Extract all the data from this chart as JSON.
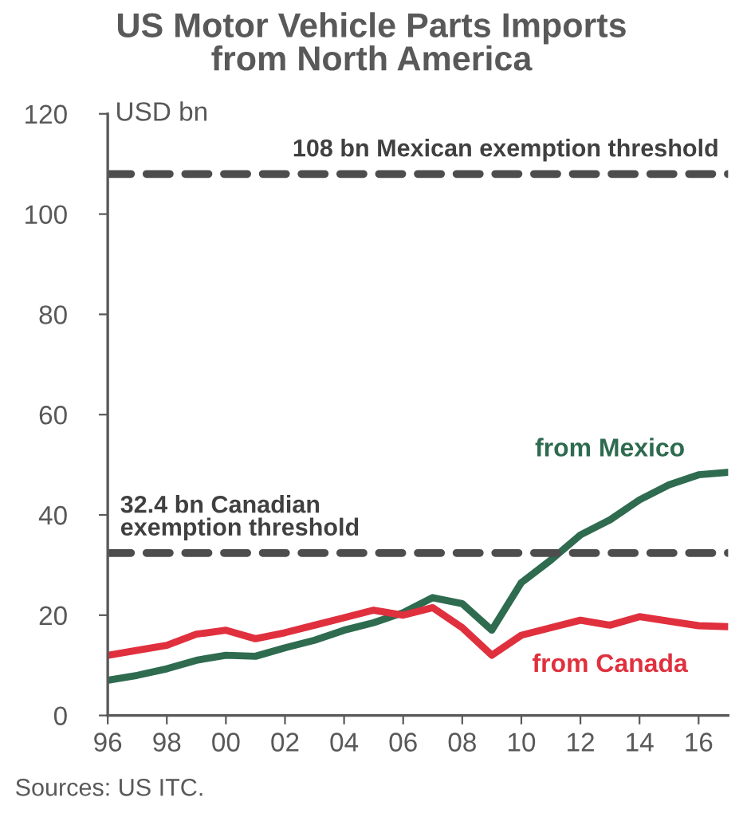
{
  "chart_data": {
    "type": "line",
    "title": "US Motor Vehicle Parts Imports\nfrom North America",
    "ylabel": "USD bn",
    "x": [
      1996,
      1997,
      1998,
      1999,
      2000,
      2001,
      2002,
      2003,
      2004,
      2005,
      2006,
      2007,
      2008,
      2009,
      2010,
      2011,
      2012,
      2013,
      2014,
      2015,
      2016,
      2017
    ],
    "series": [
      {
        "name": "from Mexico",
        "color": "#2e6b4f",
        "values": [
          7,
          8,
          9.3,
          11,
          12,
          11.8,
          13.5,
          15,
          17,
          18.5,
          20.5,
          23.5,
          22.3,
          17,
          26.5,
          31,
          36,
          39,
          43,
          46,
          48,
          48.5
        ]
      },
      {
        "name": "from Canada",
        "color": "#e0303e",
        "values": [
          12,
          13,
          14,
          16.2,
          17,
          15.3,
          16.5,
          18,
          19.5,
          21,
          20,
          21.5,
          17.5,
          12,
          16,
          17.5,
          19,
          18,
          19.7,
          18.8,
          17.9,
          17.7
        ]
      }
    ],
    "xlim": [
      1996,
      2017
    ],
    "xticks": [
      {
        "value": 1996,
        "label": "96"
      },
      {
        "value": 1998,
        "label": "98"
      },
      {
        "value": 2000,
        "label": "00"
      },
      {
        "value": 2002,
        "label": "02"
      },
      {
        "value": 2004,
        "label": "04"
      },
      {
        "value": 2006,
        "label": "06"
      },
      {
        "value": 2008,
        "label": "08"
      },
      {
        "value": 2010,
        "label": "10"
      },
      {
        "value": 2012,
        "label": "12"
      },
      {
        "value": 2014,
        "label": "14"
      },
      {
        "value": 2016,
        "label": "16"
      }
    ],
    "ylim": [
      0,
      120
    ],
    "yticks": [
      0,
      20,
      40,
      60,
      80,
      100,
      120
    ],
    "ref_lines": [
      {
        "axis": "y",
        "value": 108,
        "label": "108 bn Mexican exemption threshold",
        "color": "#4d4d4d",
        "line_style": "dashed"
      },
      {
        "axis": "y",
        "value": 32.4,
        "label": "32.4 bn Canadian\nexemption threshold",
        "color": "#4d4d4d",
        "line_style": "dashed"
      }
    ],
    "annotations": [
      "Sources: US ITC."
    ],
    "grid": false,
    "legend": false,
    "marker": "none",
    "line_style": "solid"
  }
}
